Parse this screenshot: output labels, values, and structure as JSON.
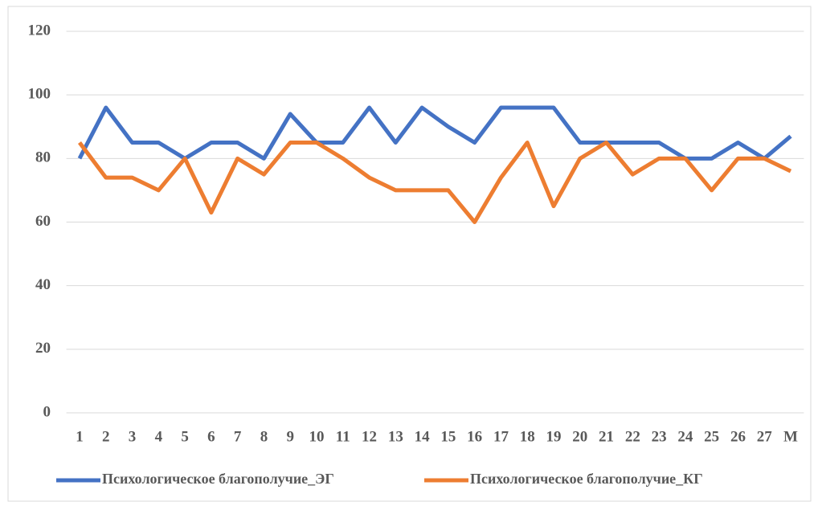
{
  "chart_data": {
    "type": "line",
    "categories": [
      "1",
      "2",
      "3",
      "4",
      "5",
      "6",
      "7",
      "8",
      "9",
      "10",
      "11",
      "12",
      "13",
      "14",
      "15",
      "16",
      "17",
      "18",
      "19",
      "20",
      "21",
      "22",
      "23",
      "24",
      "25",
      "26",
      "27",
      "М"
    ],
    "series": [
      {
        "name": "Психологическое благополучие_ЭГ",
        "color": "#4472c4",
        "values": [
          80,
          96,
          85,
          85,
          80,
          85,
          85,
          80,
          94,
          85,
          85,
          96,
          85,
          96,
          90,
          85,
          96,
          96,
          96,
          85,
          85,
          85,
          85,
          80,
          80,
          85,
          80,
          87
        ]
      },
      {
        "name": "Психологическое благополучие_КГ",
        "color": "#ed7d31",
        "values": [
          85,
          74,
          74,
          70,
          80,
          63,
          80,
          75,
          85,
          85,
          80,
          74,
          70,
          70,
          70,
          60,
          74,
          85,
          65,
          80,
          85,
          75,
          80,
          80,
          70,
          80,
          80,
          76
        ]
      }
    ],
    "ylim": [
      0,
      120
    ],
    "yticks": [
      0,
      20,
      40,
      60,
      80,
      100,
      120
    ],
    "grid": true,
    "legend": "bottom"
  }
}
